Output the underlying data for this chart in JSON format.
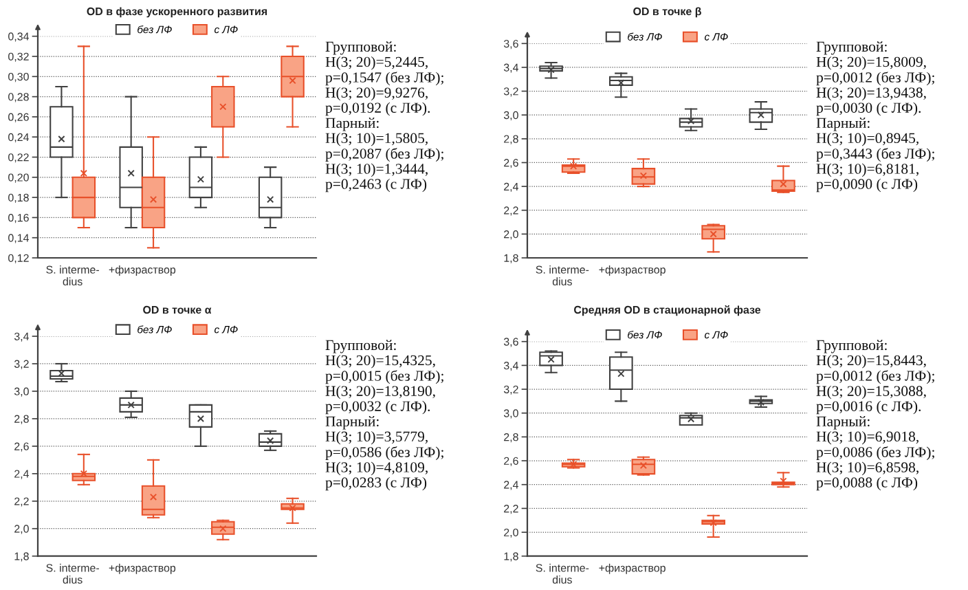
{
  "chart_data": [
    {
      "type": "box",
      "title": "OD в фазе ускоренного развития",
      "categories": [
        "S. interme-\ndius",
        "+физраствор",
        null,
        null
      ],
      "series": [
        {
          "name": "без ЛФ",
          "color": "#404040",
          "colors": [
            "#ffffff",
            "#ffffff",
            "#ffffff",
            "#ffffff"
          ],
          "boxes": [
            {
              "low": 0.18,
              "q1": 0.22,
              "median": 0.23,
              "q3": 0.27,
              "high": 0.29,
              "mean": 0.238
            },
            {
              "low": 0.15,
              "q1": 0.17,
              "median": 0.19,
              "q3": 0.23,
              "high": 0.28,
              "mean": 0.204
            },
            {
              "low": 0.17,
              "q1": 0.18,
              "median": 0.19,
              "q3": 0.22,
              "high": 0.23,
              "mean": 0.198
            },
            {
              "low": 0.15,
              "q1": 0.16,
              "median": 0.17,
              "q3": 0.2,
              "high": 0.21,
              "mean": 0.178
            }
          ]
        },
        {
          "name": "с ЛФ",
          "color": "#e8502a",
          "colors": [
            "#f9a385",
            "#f9a385",
            "#f9a385",
            "#f9a385"
          ],
          "boxes": [
            {
              "low": 0.15,
              "q1": 0.16,
              "median": 0.18,
              "q3": 0.2,
              "high": 0.33,
              "mean": 0.204
            },
            {
              "low": 0.13,
              "q1": 0.15,
              "median": 0.17,
              "q3": 0.2,
              "high": 0.24,
              "mean": 0.178
            },
            {
              "low": 0.22,
              "q1": 0.25,
              "median": 0.29,
              "q3": 0.29,
              "high": 0.3,
              "mean": 0.27
            },
            {
              "low": 0.25,
              "q1": 0.28,
              "median": 0.3,
              "q3": 0.32,
              "high": 0.33,
              "mean": 0.296
            }
          ]
        }
      ],
      "ylim": [
        0.12,
        0.34
      ],
      "yticks": [
        {
          "value": 0.12,
          "label": "0,12"
        },
        {
          "value": 0.14,
          "label": "0,14"
        },
        {
          "value": 0.16,
          "label": "0,16"
        },
        {
          "value": 0.18,
          "label": "0,18"
        },
        {
          "value": 0.2,
          "label": "0,20"
        },
        {
          "value": 0.22,
          "label": "0,22"
        },
        {
          "value": 0.24,
          "label": "0,24"
        },
        {
          "value": 0.26,
          "label": "0,26"
        },
        {
          "value": 0.28,
          "label": "0,28"
        },
        {
          "value": 0.3,
          "label": "0,30"
        },
        {
          "value": 0.32,
          "label": "0,32"
        },
        {
          "value": 0.34,
          "label": "0,34"
        }
      ],
      "grid": "y",
      "legend": "top",
      "annotations": [
        "Групповой:\nH(3; 20)=5,2445,\np=0,1547 (без ЛФ);\nH(3; 20)=9,9276,\np=0,0192 (с ЛФ).\nПарный:\nH(3; 10)=1,5805,\np=0,2087 (без ЛФ);\nH(3; 10)=1,3444,\np=0,2463 (с ЛФ)"
      ]
    },
    {
      "type": "box",
      "title": "OD в точке β",
      "categories": [
        "S. interme-\ndius",
        "+физраствор",
        null,
        null
      ],
      "series": [
        {
          "name": "без ЛФ",
          "color": "#404040",
          "colors": [
            "#ffffff",
            "#ffffff",
            "#ffffff",
            "#ffffff"
          ],
          "boxes": [
            {
              "low": 3.31,
              "q1": 3.37,
              "median": 3.39,
              "q3": 3.41,
              "high": 3.44,
              "mean": 3.38
            },
            {
              "low": 3.15,
              "q1": 3.25,
              "median": 3.29,
              "q3": 3.32,
              "high": 3.35,
              "mean": 3.27
            },
            {
              "low": 2.87,
              "q1": 2.9,
              "median": 2.94,
              "q3": 2.97,
              "high": 3.05,
              "mean": 2.95
            },
            {
              "low": 2.88,
              "q1": 2.94,
              "median": 3.02,
              "q3": 3.05,
              "high": 3.11,
              "mean": 3.0
            }
          ]
        },
        {
          "name": "с ЛФ",
          "color": "#e8502a",
          "colors": [
            "#f9a385",
            "#f9a385",
            "#f9a385",
            "#f9a385"
          ],
          "boxes": [
            {
              "low": 2.51,
              "q1": 2.52,
              "median": 2.57,
              "q3": 2.58,
              "high": 2.63,
              "mean": 2.57
            },
            {
              "low": 2.4,
              "q1": 2.42,
              "median": 2.48,
              "q3": 2.55,
              "high": 2.63,
              "mean": 2.49
            },
            {
              "low": 1.85,
              "q1": 1.96,
              "median": 2.04,
              "q3": 2.07,
              "high": 2.08,
              "mean": 2.0
            },
            {
              "low": 2.35,
              "q1": 2.36,
              "median": 2.37,
              "q3": 2.45,
              "high": 2.57,
              "mean": 2.42
            }
          ]
        }
      ],
      "ylim": [
        1.8,
        3.6
      ],
      "yticks": [
        {
          "value": 1.8,
          "label": "1,8"
        },
        {
          "value": 2.0,
          "label": "2,0"
        },
        {
          "value": 2.2,
          "label": "2,2"
        },
        {
          "value": 2.4,
          "label": "2,4"
        },
        {
          "value": 2.6,
          "label": "2,6"
        },
        {
          "value": 2.8,
          "label": "2,8"
        },
        {
          "value": 3.0,
          "label": "3,0"
        },
        {
          "value": 3.2,
          "label": "3,2"
        },
        {
          "value": 3.4,
          "label": "3,4"
        },
        {
          "value": 3.6,
          "label": "3,6"
        }
      ],
      "grid": "y",
      "legend": "top",
      "annotations": [
        "Групповой:\nH(3; 20)=15,8009,\np=0,0012 (без ЛФ);\nH(3; 20)=13,9438,\np=0,0030 (с ЛФ).\nПарный:\nH(3; 10)=0,8945,\np=0,3443 (без ЛФ);\nH(3; 10)=6,8181,\np=0,0090 (с ЛФ)"
      ]
    },
    {
      "type": "box",
      "title": "OD в точке α",
      "categories": [
        "S. interme-\ndius",
        "+физраствор",
        null,
        null
      ],
      "series": [
        {
          "name": "без ЛФ",
          "color": "#404040",
          "colors": [
            "#ffffff",
            "#ffffff",
            "#ffffff",
            "#ffffff"
          ],
          "boxes": [
            {
              "low": 3.07,
              "q1": 3.09,
              "median": 3.11,
              "q3": 3.15,
              "high": 3.2,
              "mean": 3.13
            },
            {
              "low": 2.81,
              "q1": 2.85,
              "median": 2.9,
              "q3": 2.95,
              "high": 3.0,
              "mean": 2.9
            },
            {
              "low": 2.6,
              "q1": 2.74,
              "median": 2.85,
              "q3": 2.9,
              "high": 2.9,
              "mean": 2.8
            },
            {
              "low": 2.57,
              "q1": 2.6,
              "median": 2.63,
              "q3": 2.69,
              "high": 2.71,
              "mean": 2.64
            }
          ]
        },
        {
          "name": "с ЛФ",
          "color": "#e8502a",
          "colors": [
            "#f9a385",
            "#f9a385",
            "#f9a385",
            "#f9a385"
          ],
          "boxes": [
            {
              "low": 2.32,
              "q1": 2.35,
              "median": 2.38,
              "q3": 2.4,
              "high": 2.54,
              "mean": 2.4
            },
            {
              "low": 2.08,
              "q1": 2.1,
              "median": 2.14,
              "q3": 2.31,
              "high": 2.5,
              "mean": 2.23
            },
            {
              "low": 1.92,
              "q1": 1.96,
              "median": 2.01,
              "q3": 2.05,
              "high": 2.06,
              "mean": 2.0
            },
            {
              "low": 2.04,
              "q1": 2.14,
              "median": 2.15,
              "q3": 2.18,
              "high": 2.22,
              "mean": 2.15
            }
          ]
        }
      ],
      "ylim": [
        1.8,
        3.4
      ],
      "yticks": [
        {
          "value": 1.8,
          "label": "1,8"
        },
        {
          "value": 2.0,
          "label": "2,0"
        },
        {
          "value": 2.2,
          "label": "2,2"
        },
        {
          "value": 2.4,
          "label": "2,4"
        },
        {
          "value": 2.6,
          "label": "2,6"
        },
        {
          "value": 2.8,
          "label": "2,8"
        },
        {
          "value": 3.0,
          "label": "3,0"
        },
        {
          "value": 3.2,
          "label": "3,2"
        },
        {
          "value": 3.4,
          "label": "3,4"
        }
      ],
      "grid": "y",
      "legend": "top",
      "annotations": [
        "Групповой:\nH(3; 20)=15,4325,\np=0,0015 (без ЛФ);\nH(3; 20)=13,8190,\np=0,0032 (с ЛФ).\nПарный:\nH(3; 10)=3,5779,\np=0,0586 (без ЛФ);\nH(3; 10)=4,8109,\np=0,0283 (с ЛФ)"
      ]
    },
    {
      "type": "box",
      "title": "Средняя OD в стационарной фазе",
      "categories": [
        "S. interme-\ndius",
        "+физраствор",
        null,
        null
      ],
      "series": [
        {
          "name": "без ЛФ",
          "color": "#404040",
          "colors": [
            "#ffffff",
            "#ffffff",
            "#ffffff",
            "#ffffff"
          ],
          "boxes": [
            {
              "low": 3.34,
              "q1": 3.4,
              "median": 3.48,
              "q3": 3.51,
              "high": 3.52,
              "mean": 3.45
            },
            {
              "low": 3.1,
              "q1": 3.2,
              "median": 3.36,
              "q3": 3.47,
              "high": 3.51,
              "mean": 3.33
            },
            {
              "low": 2.9,
              "q1": 2.9,
              "median": 2.96,
              "q3": 2.98,
              "high": 3.0,
              "mean": 2.95
            },
            {
              "low": 3.05,
              "q1": 3.08,
              "median": 3.1,
              "q3": 3.11,
              "high": 3.14,
              "mean": 3.09
            }
          ]
        },
        {
          "name": "с ЛФ",
          "color": "#e8502a",
          "colors": [
            "#f9a385",
            "#f9a385",
            "#f9a385",
            "#f9a385"
          ],
          "boxes": [
            {
              "low": 2.54,
              "q1": 2.55,
              "median": 2.57,
              "q3": 2.58,
              "high": 2.61,
              "mean": 2.57
            },
            {
              "low": 2.48,
              "q1": 2.49,
              "median": 2.57,
              "q3": 2.61,
              "high": 2.63,
              "mean": 2.56
            },
            {
              "low": 1.96,
              "q1": 2.07,
              "median": 2.09,
              "q3": 2.1,
              "high": 2.14,
              "mean": 2.08
            },
            {
              "low": 2.38,
              "q1": 2.4,
              "median": 2.41,
              "q3": 2.42,
              "high": 2.5,
              "mean": 2.43
            }
          ]
        }
      ],
      "ylim": [
        1.8,
        3.6
      ],
      "yticks": [
        {
          "value": 1.8,
          "label": "1,8"
        },
        {
          "value": 2.0,
          "label": "2,0"
        },
        {
          "value": 2.2,
          "label": "2,2"
        },
        {
          "value": 2.4,
          "label": "2,4"
        },
        {
          "value": 2.6,
          "label": "2,6"
        },
        {
          "value": 2.8,
          "label": "2,8"
        },
        {
          "value": 3.0,
          "label": "3,0"
        },
        {
          "value": 3.2,
          "label": "3,2"
        },
        {
          "value": 3.4,
          "label": "3,4"
        },
        {
          "value": 3.6,
          "label": "3,6"
        }
      ],
      "grid": "y",
      "legend": "top",
      "annotations": [
        "Групповой:\nH(3; 20)=15,8443,\np=0,0012 (без ЛФ);\nH(3; 20)=15,3088,\np=0,0016 (с ЛФ).\nПарный:\nH(3; 10)=6,9018,\np=0,0086 (без ЛФ);\nH(3; 10)=6,8598,\np=0,0088 (с ЛФ)"
      ]
    }
  ]
}
